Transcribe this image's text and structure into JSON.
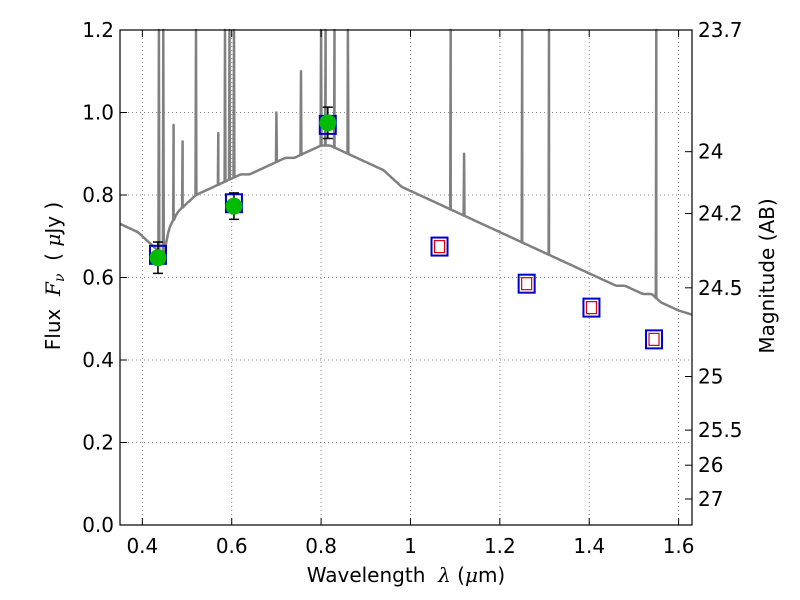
{
  "chart_data": {
    "type": "line",
    "xlabel": {
      "prefix": "Wavelength  ",
      "lambda": "λ",
      "paren_open": " (",
      "mu": "μ",
      "unit": "m)"
    },
    "ylabel": {
      "prefix": "Flux  ",
      "F": "F",
      "nu": "ν",
      "paren_open": "  ( ",
      "mu": "μ",
      "unit": "Jy )"
    },
    "y2label": "Magnitude (AB)",
    "xlim": [
      0.35,
      1.63
    ],
    "ylim": [
      0,
      1.2
    ],
    "grid": true,
    "xticks": [
      0.4,
      0.6,
      0.8,
      1.0,
      1.2,
      1.4,
      1.6
    ],
    "xtick_labels": [
      "0.4",
      "0.6",
      "0.8",
      "1",
      "1.2",
      "1.4",
      "1.6"
    ],
    "yticks": [
      0,
      0.2,
      0.4,
      0.6,
      0.8,
      1.0,
      1.2
    ],
    "ytick_labels": [
      "0.0",
      "0.2",
      "0.4",
      "0.6",
      "0.8",
      "1.0",
      "1.2"
    ],
    "y2ticks": [
      {
        "label": "23.7",
        "flux": 1.2
      },
      {
        "label": "24",
        "flux": 0.905
      },
      {
        "label": "24.2",
        "flux": 0.755
      },
      {
        "label": "24.5",
        "flux": 0.575
      },
      {
        "label": "25",
        "flux": 0.36
      },
      {
        "label": "25.5",
        "flux": 0.23
      },
      {
        "label": "26",
        "flux": 0.145
      },
      {
        "label": "27",
        "flux": 0.063
      }
    ],
    "colors": {
      "model": "#808080",
      "observed": "#00bb00",
      "model_box": "#0000cc",
      "model_point": "#dd0000",
      "grid": "#888888"
    },
    "model_spectrum": {
      "name": "",
      "continuum": [
        [
          0.35,
          0.73
        ],
        [
          0.37,
          0.72
        ],
        [
          0.39,
          0.71
        ],
        [
          0.41,
          0.69
        ],
        [
          0.43,
          0.67
        ],
        [
          0.445,
          0.64
        ],
        [
          0.46,
          0.72
        ],
        [
          0.48,
          0.76
        ],
        [
          0.5,
          0.78
        ],
        [
          0.52,
          0.8
        ],
        [
          0.54,
          0.81
        ],
        [
          0.56,
          0.82
        ],
        [
          0.58,
          0.83
        ],
        [
          0.6,
          0.84
        ],
        [
          0.62,
          0.85
        ],
        [
          0.64,
          0.85
        ],
        [
          0.66,
          0.86
        ],
        [
          0.68,
          0.87
        ],
        [
          0.7,
          0.88
        ],
        [
          0.72,
          0.89
        ],
        [
          0.74,
          0.89
        ],
        [
          0.76,
          0.9
        ],
        [
          0.78,
          0.91
        ],
        [
          0.8,
          0.92
        ],
        [
          0.82,
          0.92
        ],
        [
          0.84,
          0.91
        ],
        [
          0.86,
          0.9
        ],
        [
          0.88,
          0.89
        ],
        [
          0.9,
          0.88
        ],
        [
          0.92,
          0.87
        ],
        [
          0.94,
          0.86
        ],
        [
          0.96,
          0.84
        ],
        [
          0.98,
          0.82
        ],
        [
          1.0,
          0.81
        ],
        [
          1.02,
          0.8
        ],
        [
          1.04,
          0.79
        ],
        [
          1.06,
          0.78
        ],
        [
          1.08,
          0.77
        ],
        [
          1.1,
          0.76
        ],
        [
          1.12,
          0.75
        ],
        [
          1.14,
          0.74
        ],
        [
          1.16,
          0.73
        ],
        [
          1.18,
          0.72
        ],
        [
          1.2,
          0.71
        ],
        [
          1.22,
          0.7
        ],
        [
          1.24,
          0.69
        ],
        [
          1.26,
          0.68
        ],
        [
          1.28,
          0.67
        ],
        [
          1.3,
          0.66
        ],
        [
          1.32,
          0.65
        ],
        [
          1.34,
          0.64
        ],
        [
          1.36,
          0.63
        ],
        [
          1.38,
          0.62
        ],
        [
          1.4,
          0.61
        ],
        [
          1.42,
          0.6
        ],
        [
          1.44,
          0.59
        ],
        [
          1.46,
          0.58
        ],
        [
          1.48,
          0.58
        ],
        [
          1.5,
          0.57
        ],
        [
          1.52,
          0.56
        ],
        [
          1.54,
          0.56
        ],
        [
          1.56,
          0.54
        ],
        [
          1.58,
          0.53
        ],
        [
          1.6,
          0.52
        ],
        [
          1.63,
          0.51
        ]
      ],
      "emission_lines": [
        {
          "x": 0.437,
          "peak": 1.2
        },
        {
          "x": 0.447,
          "peak": 1.2
        },
        {
          "x": 0.47,
          "peak": 0.97
        },
        {
          "x": 0.49,
          "peak": 0.93
        },
        {
          "x": 0.52,
          "peak": 1.2
        },
        {
          "x": 0.57,
          "peak": 0.95
        },
        {
          "x": 0.585,
          "peak": 1.2
        },
        {
          "x": 0.595,
          "peak": 1.2
        },
        {
          "x": 0.605,
          "peak": 1.2
        },
        {
          "x": 0.7,
          "peak": 1.0
        },
        {
          "x": 0.755,
          "peak": 1.1
        },
        {
          "x": 0.8,
          "peak": 1.2
        },
        {
          "x": 0.81,
          "peak": 1.2
        },
        {
          "x": 0.83,
          "peak": 1.2
        },
        {
          "x": 0.86,
          "peak": 1.2
        },
        {
          "x": 1.09,
          "peak": 1.2
        },
        {
          "x": 1.12,
          "peak": 0.9
        },
        {
          "x": 1.25,
          "peak": 1.2
        },
        {
          "x": 1.31,
          "peak": 1.2
        },
        {
          "x": 1.55,
          "peak": 1.2
        }
      ]
    },
    "observed_points": {
      "name": "",
      "x": [
        0.435,
        0.605,
        0.815
      ],
      "y": [
        0.648,
        0.773,
        0.975
      ],
      "err": [
        0.038,
        0.032,
        0.038
      ]
    },
    "model_points": {
      "name": "",
      "x": [
        0.435,
        0.605,
        0.815,
        1.065,
        1.26,
        1.405,
        1.545
      ],
      "y": [
        0.655,
        0.78,
        0.97,
        0.675,
        0.585,
        0.527,
        0.45
      ],
      "filled": [
        false,
        false,
        false,
        true,
        true,
        true,
        true
      ]
    }
  }
}
